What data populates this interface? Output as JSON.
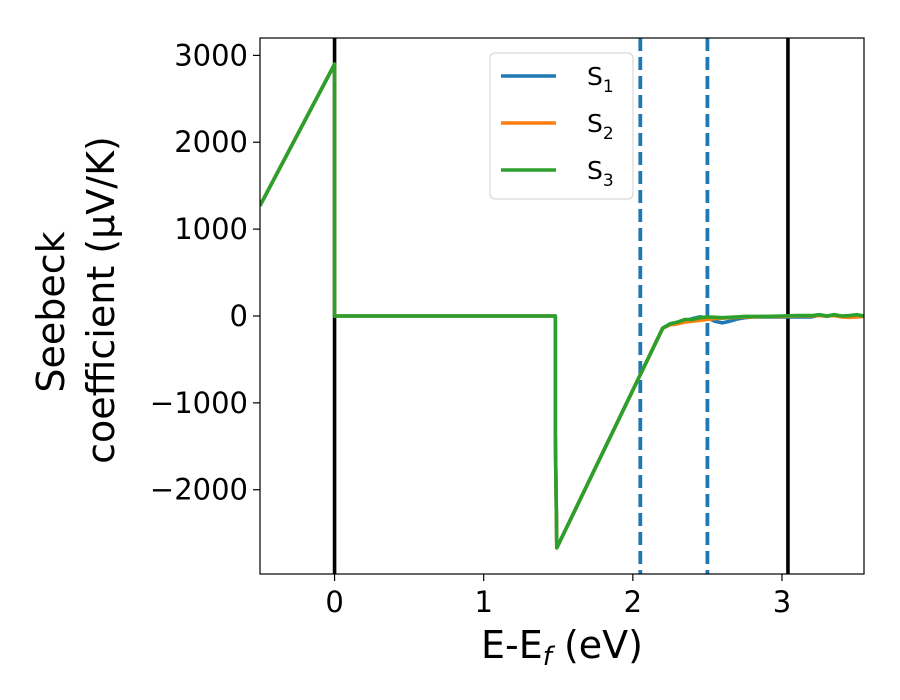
{
  "chart_data": {
    "type": "line",
    "xlabel": "E-E$_f$ (eV)",
    "xlabel_parts": {
      "main": "E-E",
      "sub": "f",
      "tail": " (eV)"
    },
    "ylabel_line1": "Seebeck",
    "ylabel_line2": "coefficient  (μV/K)",
    "xlim": [
      -0.5,
      3.55
    ],
    "ylim": [
      -2970,
      3200
    ],
    "xticks": [
      0,
      1,
      2,
      3
    ],
    "xtick_labels": [
      "0",
      "1",
      "2",
      "3"
    ],
    "yticks": [
      -2000,
      -1000,
      0,
      1000,
      2000,
      3000
    ],
    "ytick_labels": [
      "−2000",
      "−1000",
      "0",
      "1000",
      "2000",
      "3000"
    ],
    "legend_position": "upper center",
    "vertical_lines": [
      {
        "x": 0,
        "style": "solid",
        "color": "#000000"
      },
      {
        "x": 3.04,
        "style": "solid",
        "color": "#000000"
      },
      {
        "x": 2.05,
        "style": "dashed",
        "color": "#1f77b4"
      },
      {
        "x": 2.5,
        "style": "dashed",
        "color": "#1f77b4"
      }
    ],
    "series": [
      {
        "name": "S",
        "sub": "1",
        "color": "#1f77b4",
        "x": [
          -0.5,
          0.0,
          0.0,
          1.48,
          1.48,
          1.49,
          2.2,
          2.25,
          2.3,
          2.35,
          2.4,
          2.45,
          2.5,
          2.55,
          2.6,
          2.65,
          2.7,
          2.75,
          2.8,
          2.9,
          3.0,
          3.1,
          3.2,
          3.25,
          3.3,
          3.35,
          3.4,
          3.45,
          3.5,
          3.55
        ],
        "y": [
          1270,
          2900,
          0,
          0,
          -1350,
          -2670,
          -140,
          -95,
          -80,
          -60,
          -30,
          -10,
          -20,
          -60,
          -80,
          -60,
          -35,
          -20,
          -10,
          -10,
          -10,
          -10,
          -10,
          10,
          -5,
          10,
          -5,
          -10,
          5,
          0
        ]
      },
      {
        "name": "S",
        "sub": "2",
        "color": "#ff7f0e",
        "x": [
          -0.5,
          0.0,
          0.0,
          1.48,
          1.48,
          1.49,
          2.2,
          2.25,
          2.3,
          2.35,
          2.4,
          2.45,
          2.5,
          2.55,
          2.6,
          2.65,
          2.7,
          2.75,
          2.8,
          2.9,
          3.0,
          3.1,
          3.2,
          3.25,
          3.3,
          3.35,
          3.4,
          3.45,
          3.5,
          3.55
        ],
        "y": [
          1270,
          2900,
          0,
          0,
          -1350,
          -2670,
          -140,
          -100,
          -90,
          -70,
          -60,
          -50,
          -40,
          -30,
          -25,
          -20,
          -15,
          -10,
          -10,
          -5,
          -5,
          0,
          0,
          5,
          0,
          5,
          -10,
          -15,
          -10,
          -5
        ]
      },
      {
        "name": "S",
        "sub": "3",
        "color": "#2ca02c",
        "x": [
          -0.5,
          0.0,
          0.0,
          1.48,
          1.48,
          1.49,
          2.2,
          2.25,
          2.3,
          2.35,
          2.4,
          2.45,
          2.5,
          2.55,
          2.6,
          2.65,
          2.7,
          2.75,
          2.8,
          2.9,
          3.0,
          3.1,
          3.2,
          3.25,
          3.3,
          3.35,
          3.4,
          3.45,
          3.5,
          3.55
        ],
        "y": [
          1270,
          2900,
          0,
          0,
          -1350,
          -2670,
          -140,
          -90,
          -70,
          -40,
          -40,
          -20,
          -10,
          -15,
          -20,
          -15,
          -10,
          -5,
          -5,
          -5,
          0,
          5,
          5,
          15,
          0,
          15,
          0,
          5,
          15,
          0
        ]
      }
    ]
  }
}
